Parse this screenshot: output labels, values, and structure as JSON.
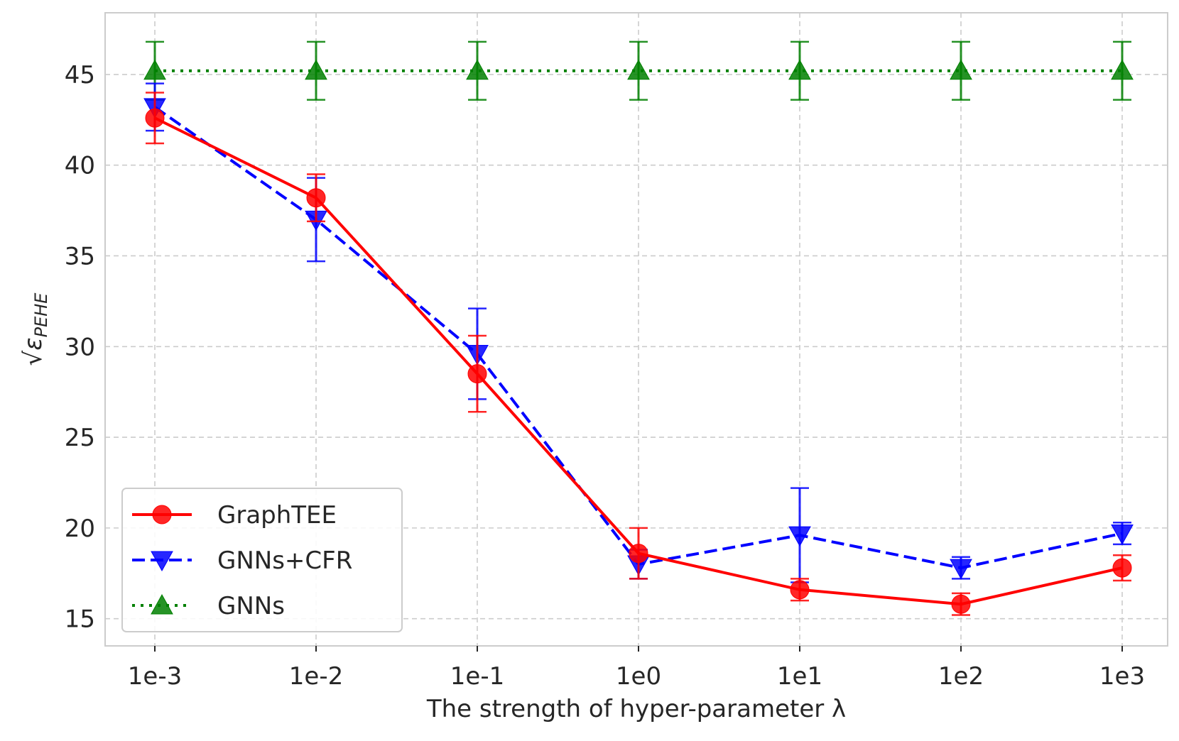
{
  "chart_data": {
    "type": "line",
    "title": "",
    "xlabel": "The strength of hyper-parameter λ",
    "ylabel_base": "ε",
    "ylabel_sub": "PEHE",
    "ylabel_radical": "√",
    "categories": [
      "1e-3",
      "1e-2",
      "1e-1",
      "1e0",
      "1e1",
      "1e2",
      "1e3"
    ],
    "ylim": [
      13.5,
      48.4
    ],
    "yticks": [
      15,
      20,
      25,
      30,
      35,
      40,
      45
    ],
    "grid": true,
    "legend_position": "lower-left",
    "series": [
      {
        "name": "GraphTEE",
        "color": "#ff0000",
        "linestyle": "solid",
        "marker": "circle",
        "values": [
          42.6,
          38.2,
          28.5,
          18.6,
          16.6,
          15.8,
          17.8
        ],
        "errors": [
          1.4,
          1.3,
          2.1,
          1.4,
          0.6,
          0.6,
          0.7
        ]
      },
      {
        "name": "GNNs+CFR",
        "color": "#0000ff",
        "linestyle": "dashed",
        "marker": "triangle-down",
        "values": [
          43.2,
          37.0,
          29.6,
          18.0,
          19.6,
          17.8,
          19.7
        ],
        "errors": [
          1.3,
          2.3,
          2.5,
          0.8,
          2.6,
          0.6,
          0.6
        ]
      },
      {
        "name": "GNNs",
        "color": "#008000",
        "linestyle": "dotted",
        "marker": "triangle-up",
        "values": [
          45.2,
          45.2,
          45.2,
          45.2,
          45.2,
          45.2,
          45.2
        ],
        "errors": [
          1.6,
          1.6,
          1.6,
          1.6,
          1.6,
          1.6,
          1.6
        ]
      }
    ]
  }
}
